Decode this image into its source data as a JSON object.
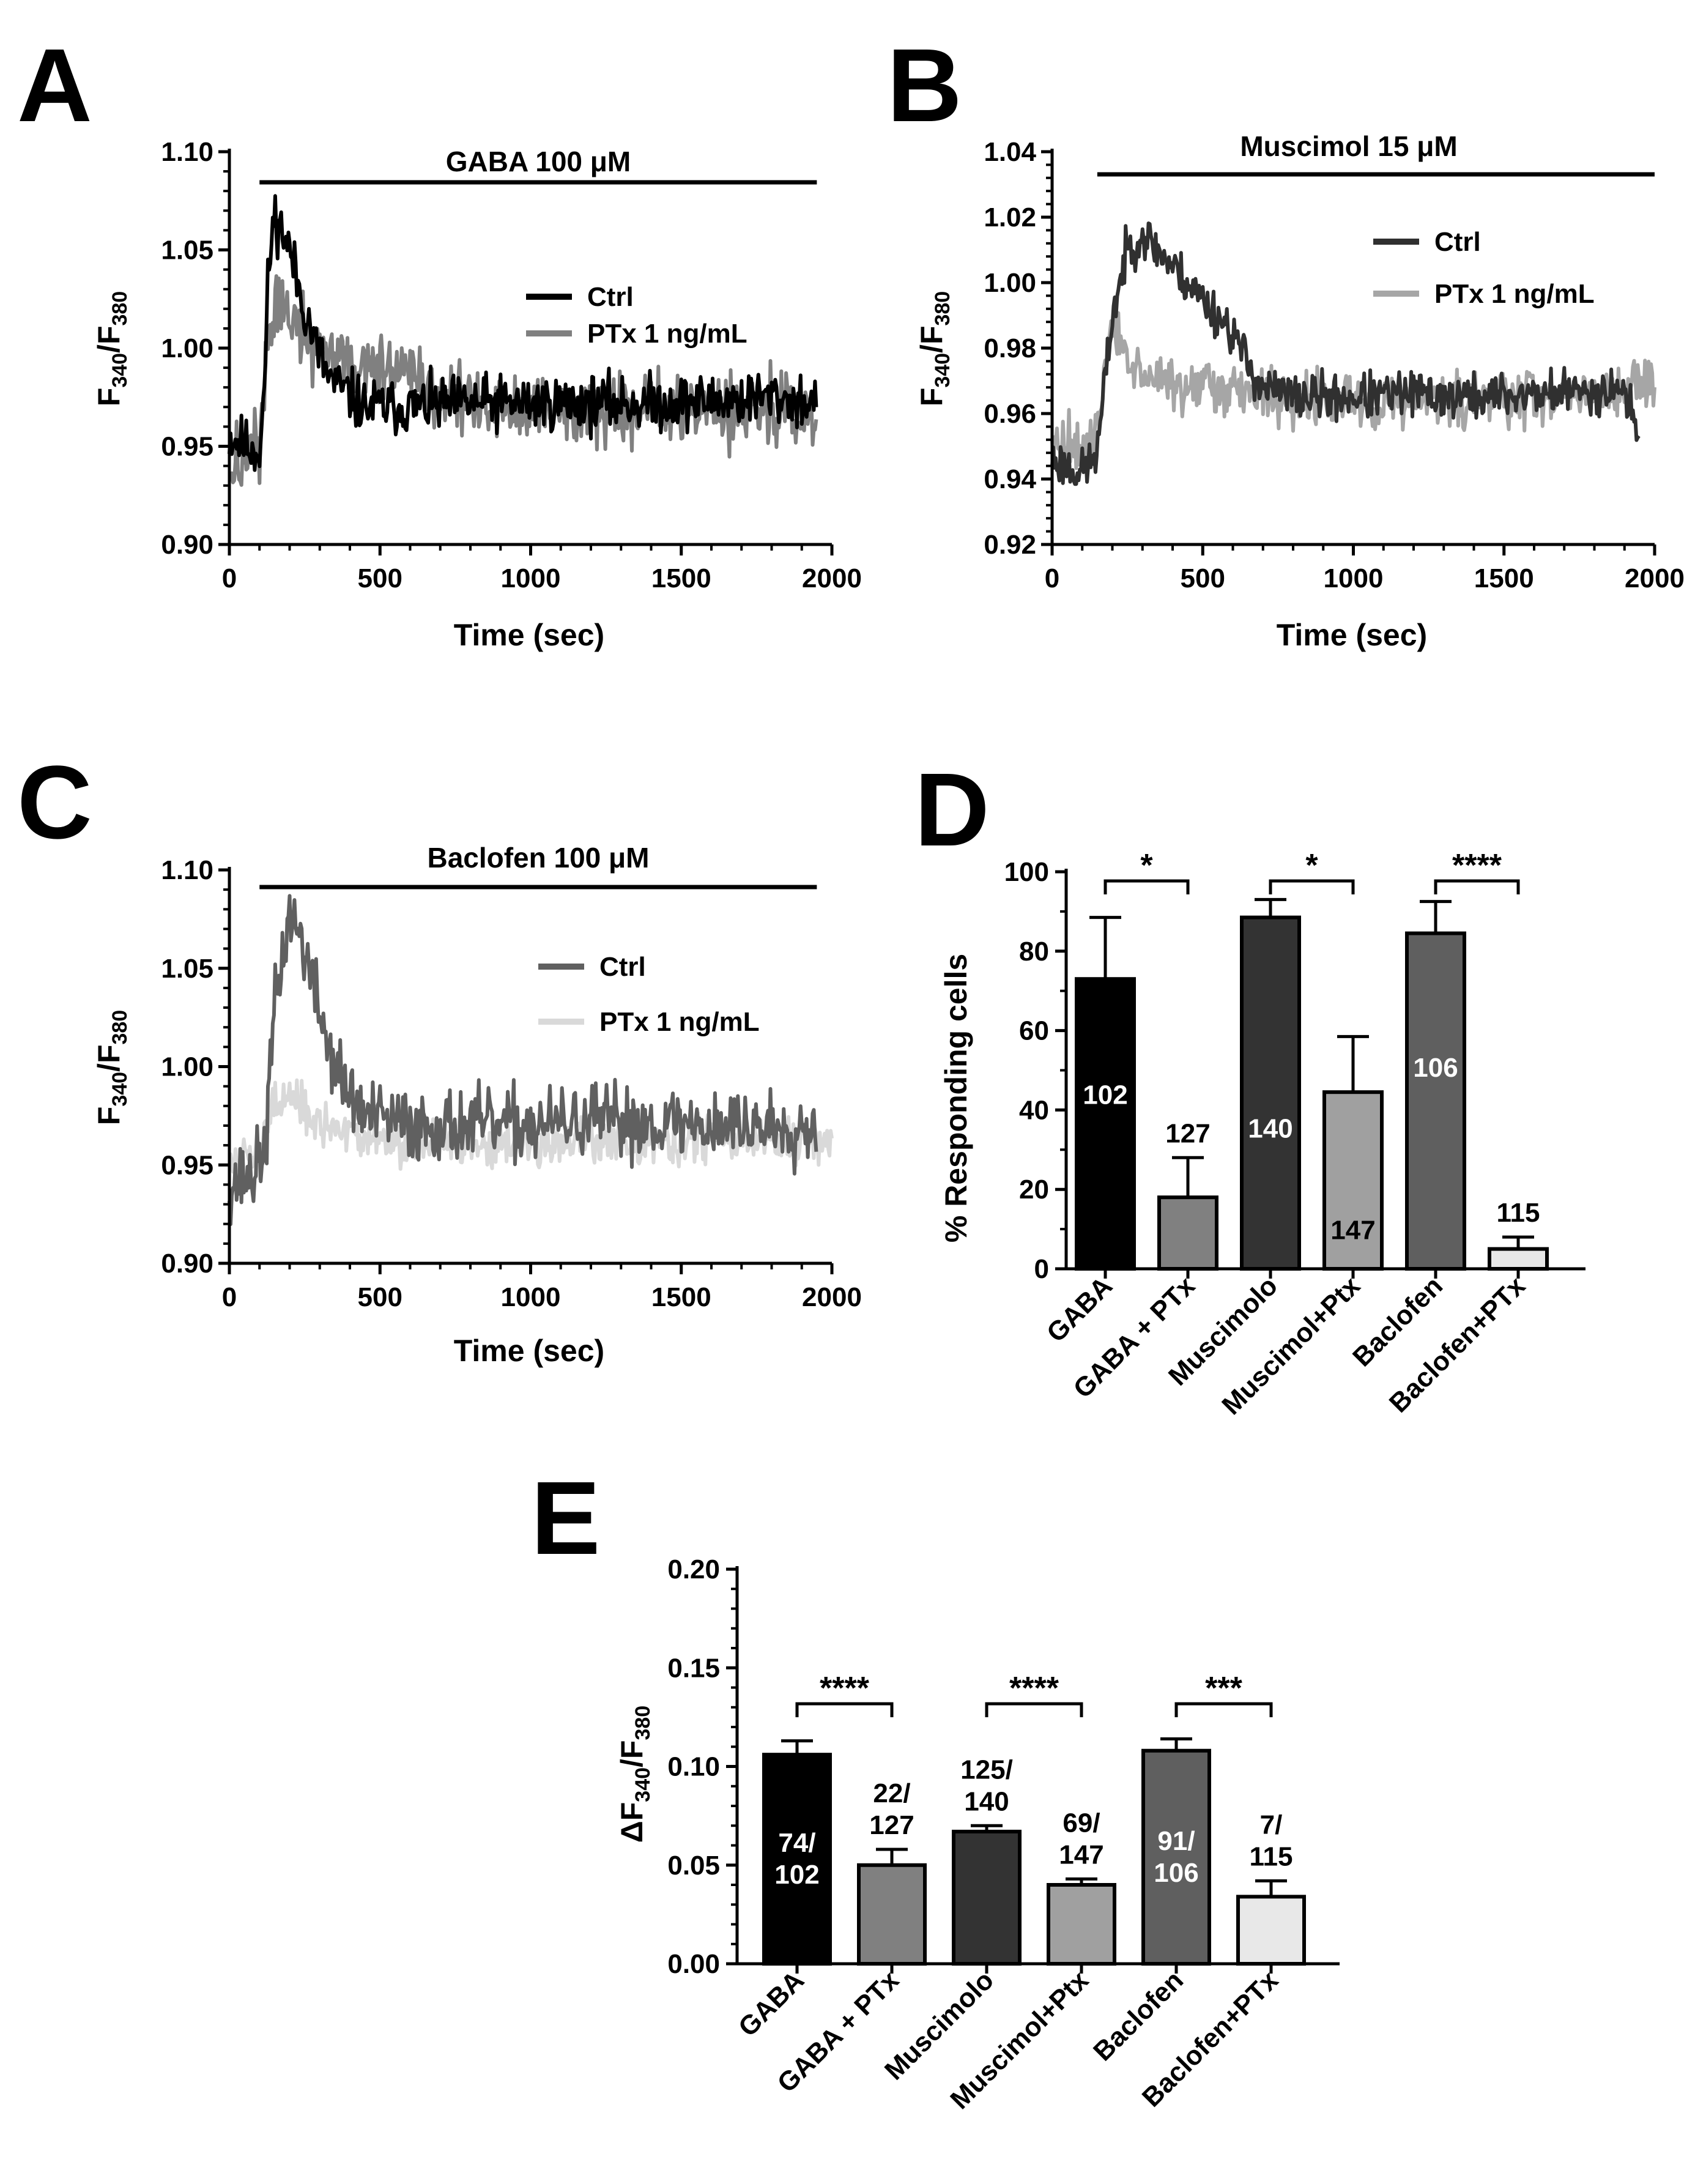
{
  "panels": {
    "A": {
      "letter": "A",
      "stim": "GABA 100 μM",
      "xlabel": "Time (sec)",
      "ylabel": {
        "main": "F",
        "sub1": "340",
        "sep": "/F",
        "sub2": "380"
      }
    },
    "B": {
      "letter": "B",
      "stim": "Muscimol 15 μM",
      "xlabel": "Time (sec)",
      "ylabel": {
        "main": "F",
        "sub1": "340",
        "sep": "/F",
        "sub2": "380"
      }
    },
    "C": {
      "letter": "C",
      "stim": "Baclofen 100 μM",
      "xlabel": "Time (sec)",
      "ylabel": {
        "main": "F",
        "sub1": "340",
        "sep": "/F",
        "sub2": "380"
      }
    },
    "D": {
      "letter": "D",
      "ylabel": "% Responding cells"
    },
    "E": {
      "letter": "E",
      "ylabel": {
        "main": "ΔF",
        "sub1": "340",
        "sep": "/F",
        "sub2": "380"
      }
    }
  },
  "chart_data": [
    {
      "id": "A",
      "type": "line",
      "title": "",
      "annotation": "GABA 100 μM",
      "stimulus_bar": [
        100,
        1950
      ],
      "xlabel": "Time (sec)",
      "ylabel": "F340/F380",
      "xlim": [
        0,
        2000
      ],
      "ylim": [
        0.9,
        1.1
      ],
      "xticks": [
        0,
        500,
        1000,
        1500,
        2000
      ],
      "yticks": [
        "0.90",
        "0.95",
        "1.00",
        "1.05",
        "1.10"
      ],
      "legend_position": "right",
      "series": [
        {
          "name": "Ctrl",
          "color": "#000000",
          "noise": 0.007,
          "points": [
            [
              0,
              0.955
            ],
            [
              60,
              0.95
            ],
            [
              100,
              0.948
            ],
            [
              115,
              0.975
            ],
            [
              130,
              1.04
            ],
            [
              150,
              1.068
            ],
            [
              175,
              1.06
            ],
            [
              200,
              1.05
            ],
            [
              240,
              1.025
            ],
            [
              290,
              1.0
            ],
            [
              330,
              0.985
            ],
            [
              380,
              0.978
            ],
            [
              450,
              0.97
            ],
            [
              600,
              0.97
            ],
            [
              800,
              0.972
            ],
            [
              1000,
              0.972
            ],
            [
              1200,
              0.972
            ],
            [
              1400,
              0.972
            ],
            [
              1600,
              0.973
            ],
            [
              1800,
              0.975
            ],
            [
              1950,
              0.972
            ]
          ]
        },
        {
          "name": "PTx 1 ng/mL",
          "color": "#808080",
          "noise": 0.009,
          "points": [
            [
              0,
              0.938
            ],
            [
              60,
              0.945
            ],
            [
              100,
              0.95
            ],
            [
              120,
              0.995
            ],
            [
              150,
              1.02
            ],
            [
              200,
              1.018
            ],
            [
              250,
              1.005
            ],
            [
              300,
              1.0
            ],
            [
              400,
              0.992
            ],
            [
              500,
              0.99
            ],
            [
              600,
              0.985
            ],
            [
              700,
              0.975
            ],
            [
              900,
              0.968
            ],
            [
              1200,
              0.968
            ],
            [
              1500,
              0.968
            ],
            [
              1800,
              0.968
            ],
            [
              1950,
              0.966
            ]
          ]
        }
      ]
    },
    {
      "id": "B",
      "type": "line",
      "title": "",
      "annotation": "Muscimol 15 μM",
      "stimulus_bar": [
        150,
        2000
      ],
      "xlabel": "Time (sec)",
      "ylabel": "F340/F380",
      "xlim": [
        0,
        2000
      ],
      "ylim": [
        0.92,
        1.04
      ],
      "xticks": [
        0,
        500,
        1000,
        1500,
        2000
      ],
      "yticks": [
        "0.92",
        "0.94",
        "0.96",
        "0.98",
        "1.00",
        "1.02",
        "1.04"
      ],
      "legend_position": "right",
      "series": [
        {
          "name": "Ctrl",
          "color": "#303030",
          "noise": 0.0035,
          "points": [
            [
              0,
              0.946
            ],
            [
              100,
              0.942
            ],
            [
              150,
              0.948
            ],
            [
              200,
              0.99
            ],
            [
              250,
              1.01
            ],
            [
              300,
              1.015
            ],
            [
              350,
              1.01
            ],
            [
              400,
              1.005
            ],
            [
              500,
              0.995
            ],
            [
              600,
              0.985
            ],
            [
              650,
              0.975
            ],
            [
              700,
              0.968
            ],
            [
              800,
              0.965
            ],
            [
              1000,
              0.965
            ],
            [
              1200,
              0.966
            ],
            [
              1400,
              0.965
            ],
            [
              1600,
              0.966
            ],
            [
              1800,
              0.967
            ],
            [
              1900,
              0.968
            ],
            [
              1950,
              0.95
            ]
          ]
        },
        {
          "name": "PTx 1 ng/mL",
          "color": "#a6a6a6",
          "noise": 0.004,
          "points": [
            [
              0,
              0.952
            ],
            [
              100,
              0.95
            ],
            [
              150,
              0.955
            ],
            [
              200,
              0.985
            ],
            [
              250,
              0.98
            ],
            [
              300,
              0.972
            ],
            [
              400,
              0.968
            ],
            [
              500,
              0.968
            ],
            [
              600,
              0.967
            ],
            [
              800,
              0.964
            ],
            [
              1000,
              0.964
            ],
            [
              1200,
              0.964
            ],
            [
              1400,
              0.964
            ],
            [
              1600,
              0.965
            ],
            [
              1800,
              0.966
            ],
            [
              1950,
              0.968
            ],
            [
              2000,
              0.968
            ]
          ]
        }
      ]
    },
    {
      "id": "C",
      "type": "line",
      "title": "",
      "annotation": "Baclofen 100 μM",
      "stimulus_bar": [
        100,
        1950
      ],
      "xlabel": "Time (sec)",
      "ylabel": "F340/F380",
      "xlim": [
        0,
        2000
      ],
      "ylim": [
        0.9,
        1.1
      ],
      "xticks": [
        0,
        500,
        1000,
        1500,
        2000
      ],
      "yticks": [
        "0.90",
        "0.95",
        "1.00",
        "1.05",
        "1.10"
      ],
      "legend_position": "right",
      "series": [
        {
          "name": "Ctrl",
          "color": "#606060",
          "noise": 0.009,
          "points": [
            [
              0,
              0.94
            ],
            [
              80,
              0.945
            ],
            [
              120,
              0.96
            ],
            [
              150,
              1.03
            ],
            [
              200,
              1.078
            ],
            [
              240,
              1.065
            ],
            [
              280,
              1.04
            ],
            [
              330,
              1.01
            ],
            [
              380,
              0.99
            ],
            [
              450,
              0.975
            ],
            [
              600,
              0.97
            ],
            [
              800,
              0.97
            ],
            [
              1000,
              0.97
            ],
            [
              1200,
              0.972
            ],
            [
              1400,
              0.972
            ],
            [
              1600,
              0.97
            ],
            [
              1800,
              0.97
            ],
            [
              1950,
              0.97
            ]
          ]
        },
        {
          "name": "PTx 1 ng/mL",
          "color": "#d9d9d9",
          "noise": 0.006,
          "points": [
            [
              0,
              0.95
            ],
            [
              100,
              0.955
            ],
            [
              140,
              0.98
            ],
            [
              200,
              0.982
            ],
            [
              300,
              0.97
            ],
            [
              400,
              0.965
            ],
            [
              500,
              0.962
            ],
            [
              700,
              0.962
            ],
            [
              900,
              0.962
            ],
            [
              1200,
              0.962
            ],
            [
              1500,
              0.962
            ],
            [
              1800,
              0.962
            ],
            [
              2000,
              0.962
            ]
          ]
        }
      ]
    },
    {
      "id": "D",
      "type": "bar",
      "title": "",
      "xlabel": "",
      "ylabel": "% Responding cells",
      "ylim": [
        0,
        100
      ],
      "yticks": [
        "0",
        "20",
        "40",
        "60",
        "80",
        "100"
      ],
      "categories": [
        "GABA",
        "GABA + PTx",
        "Muscimolo",
        "Muscimol+Ptx",
        "Baclofen",
        "Baclofen+PTx"
      ],
      "values": [
        73,
        18,
        88.5,
        44.5,
        84.5,
        5
      ],
      "errors": [
        15.5,
        10,
        4.5,
        14,
        8,
        3
      ],
      "colors": [
        "#000000",
        "#808080",
        "#333333",
        "#a0a0a0",
        "#5f5f5f",
        "#e8e8e8"
      ],
      "bar_labels": [
        [
          "102"
        ],
        [
          "127"
        ],
        [
          "140"
        ],
        [
          "147"
        ],
        [
          "106"
        ],
        [
          "115"
        ]
      ],
      "significance": [
        {
          "from": 0,
          "to": 1,
          "label": "*"
        },
        {
          "from": 2,
          "to": 3,
          "label": "*"
        },
        {
          "from": 4,
          "to": 5,
          "label": "****"
        }
      ]
    },
    {
      "id": "E",
      "type": "bar",
      "title": "",
      "xlabel": "",
      "ylabel": "ΔF340/F380",
      "ylim": [
        0,
        0.2
      ],
      "yticks": [
        "0.00",
        "0.05",
        "0.10",
        "0.15",
        "0.20"
      ],
      "categories": [
        "GABA",
        "GABA + PTx",
        "Muscimolo",
        "Muscimol+Ptx",
        "Baclofen",
        "Baclofen+PTx"
      ],
      "values": [
        0.106,
        0.05,
        0.067,
        0.04,
        0.108,
        0.034
      ],
      "errors": [
        0.007,
        0.008,
        0.003,
        0.003,
        0.006,
        0.008
      ],
      "colors": [
        "#000000",
        "#808080",
        "#333333",
        "#a0a0a0",
        "#5f5f5f",
        "#e8e8e8"
      ],
      "bar_labels": [
        [
          "74/",
          "102"
        ],
        [
          "22/",
          "127"
        ],
        [
          "125/",
          "140"
        ],
        [
          "69/",
          "147"
        ],
        [
          "91/",
          "106"
        ],
        [
          "7/",
          "115"
        ]
      ],
      "significance": [
        {
          "from": 0,
          "to": 1,
          "label": "****"
        },
        {
          "from": 2,
          "to": 3,
          "label": "****"
        },
        {
          "from": 4,
          "to": 5,
          "label": "***"
        }
      ]
    }
  ]
}
